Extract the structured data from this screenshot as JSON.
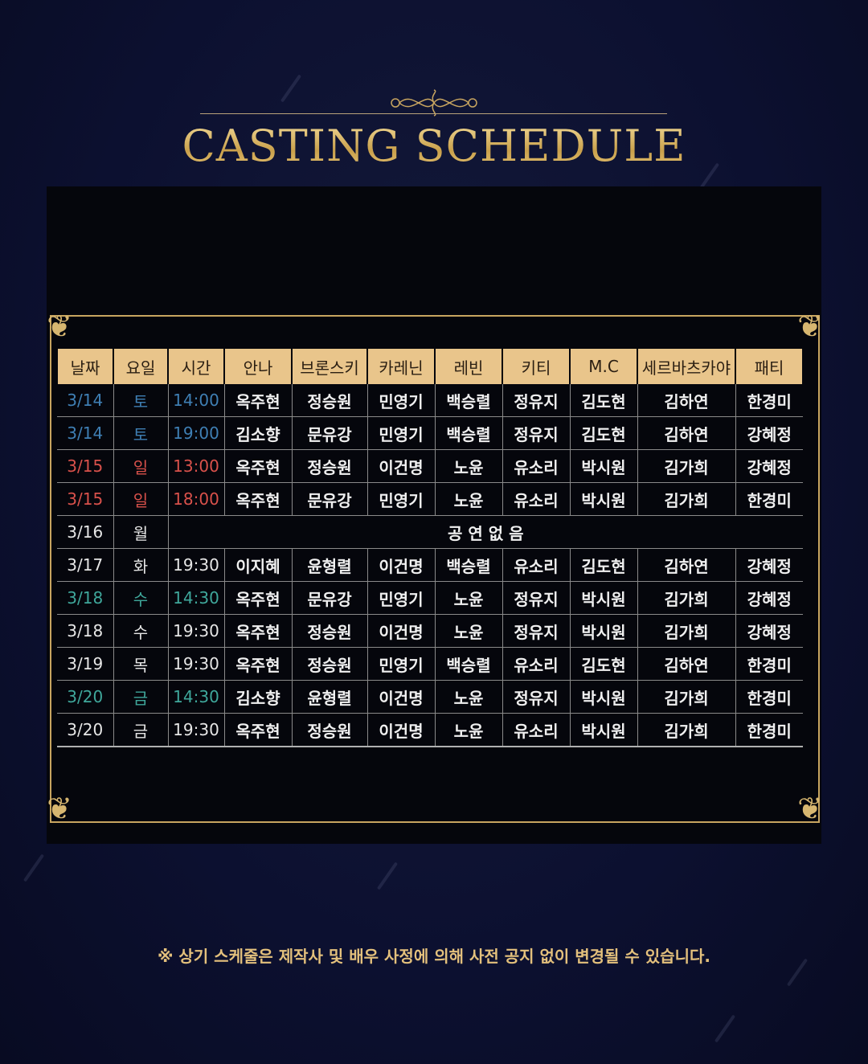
{
  "title": "CASTING SCHEDULE",
  "colors": {
    "gold": "#e6c36e",
    "header_bg": "#e9c58b",
    "blue": "#3f7fb4",
    "red": "#d9514b",
    "teal": "#3fa79b"
  },
  "table": {
    "headers": [
      "날짜",
      "요일",
      "시간",
      "안나",
      "브론스키",
      "카레닌",
      "레빈",
      "키티",
      "M.C",
      "세르바츠카야",
      "패티"
    ],
    "rows": [
      {
        "tone": "blue",
        "cells": [
          "3/14",
          "토",
          "14:00",
          "옥주현",
          "정승원",
          "민영기",
          "백승렬",
          "정유지",
          "김도현",
          "김하연",
          "한경미"
        ]
      },
      {
        "tone": "blue",
        "cells": [
          "3/14",
          "토",
          "19:00",
          "김소향",
          "문유강",
          "민영기",
          "백승렬",
          "정유지",
          "김도현",
          "김하연",
          "강혜정"
        ]
      },
      {
        "tone": "red",
        "cells": [
          "3/15",
          "일",
          "13:00",
          "옥주현",
          "정승원",
          "이건명",
          "노윤",
          "유소리",
          "박시원",
          "김가희",
          "강혜정"
        ]
      },
      {
        "tone": "red",
        "cells": [
          "3/15",
          "일",
          "18:00",
          "옥주현",
          "문유강",
          "민영기",
          "노윤",
          "유소리",
          "박시원",
          "김가희",
          "한경미"
        ]
      },
      {
        "tone": "default",
        "cells": [
          "3/16",
          "월"
        ],
        "note": "공 연 없 음"
      },
      {
        "tone": "default",
        "cells": [
          "3/17",
          "화",
          "19:30",
          "이지혜",
          "윤형렬",
          "이건명",
          "백승렬",
          "유소리",
          "김도현",
          "김하연",
          "강혜정"
        ]
      },
      {
        "tone": "teal",
        "cells": [
          "3/18",
          "수",
          "14:30",
          "옥주현",
          "문유강",
          "민영기",
          "노윤",
          "정유지",
          "박시원",
          "김가희",
          "강혜정"
        ]
      },
      {
        "tone": "default",
        "cells": [
          "3/18",
          "수",
          "19:30",
          "옥주현",
          "정승원",
          "이건명",
          "노윤",
          "정유지",
          "박시원",
          "김가희",
          "강혜정"
        ]
      },
      {
        "tone": "default",
        "cells": [
          "3/19",
          "목",
          "19:30",
          "옥주현",
          "정승원",
          "민영기",
          "백승렬",
          "유소리",
          "김도현",
          "김하연",
          "한경미"
        ]
      },
      {
        "tone": "teal",
        "cells": [
          "3/20",
          "금",
          "14:30",
          "김소향",
          "윤형렬",
          "이건명",
          "노윤",
          "정유지",
          "박시원",
          "김가희",
          "한경미"
        ]
      },
      {
        "tone": "default",
        "cells": [
          "3/20",
          "금",
          "19:30",
          "옥주현",
          "정승원",
          "이건명",
          "노윤",
          "유소리",
          "박시원",
          "김가희",
          "한경미"
        ]
      }
    ]
  },
  "footer_note": "※ 상기 스케줄은 제작사 및 배우 사정에 의해 사전 공지 없이 변경될 수 있습니다."
}
